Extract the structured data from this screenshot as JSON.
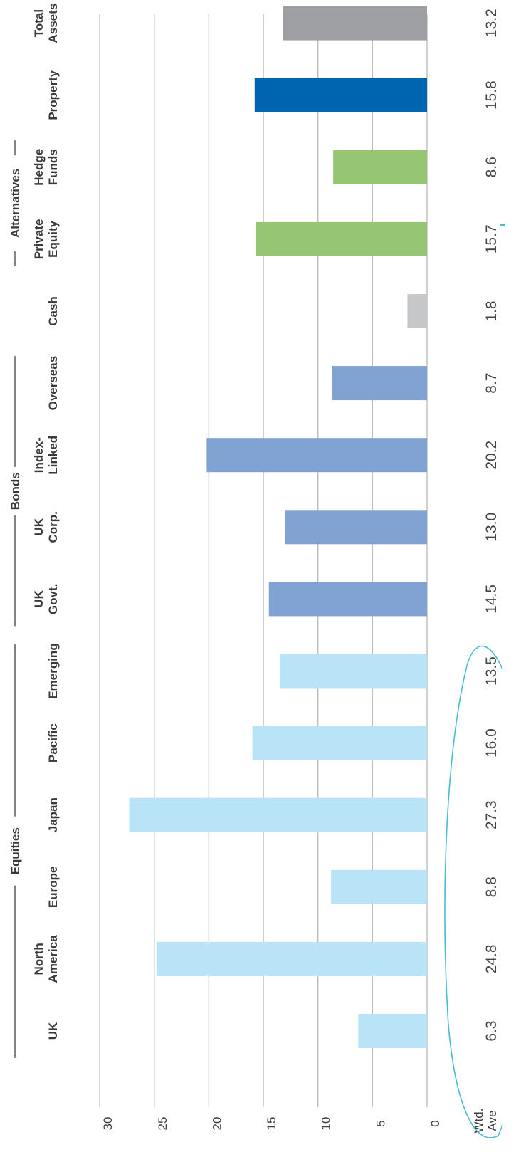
{
  "chart_data": {
    "type": "bar",
    "orientation": "horizontal",
    "categories": [
      "UK",
      "North America",
      "Europe",
      "Japan",
      "Pacific",
      "Emerging",
      "UK Govt.",
      "UK Corp.",
      "Index-Linked",
      "Overseas",
      "Cash",
      "Private Equity",
      "Hedge Funds",
      "Property",
      "Total Assets"
    ],
    "values": [
      6.3,
      24.8,
      8.8,
      27.3,
      16.0,
      13.5,
      14.5,
      13.0,
      20.2,
      8.7,
      1.8,
      15.7,
      8.6,
      15.8,
      13.2
    ],
    "value_labels": [
      "6.3",
      "24.8",
      "8.8",
      "27.3",
      "16.0",
      "13.5",
      "14.5",
      "13.0",
      "20.2",
      "8.7",
      "1.8",
      "15.7",
      "8.6",
      "15.8",
      "13.2"
    ],
    "bar_colors": [
      "#b9e3f7",
      "#b9e3f7",
      "#b9e3f7",
      "#b9e3f7",
      "#b9e3f7",
      "#b9e3f7",
      "#80a3d4",
      "#80a3d4",
      "#80a3d4",
      "#80a3d4",
      "#c6c7c9",
      "#96c573",
      "#96c573",
      "#0065b1",
      "#9d9fa2"
    ],
    "groups": [
      {
        "name": "Equities",
        "from": 0,
        "to": 5
      },
      {
        "name": "Bonds",
        "from": 6,
        "to": 9
      },
      {
        "name": "Alternatives",
        "from": 11,
        "to": 12
      }
    ],
    "value_axis": {
      "range": [
        0,
        30
      ],
      "ticks": [
        0,
        5,
        10,
        15,
        20,
        25,
        30
      ],
      "tick_labels": [
        "0",
        "5",
        "10",
        "15",
        "20",
        "25",
        "30"
      ]
    },
    "value_column_header": "Wtd. Ave",
    "rotation": "rotated 90 degrees clockwise (text reads bottom-to-top)",
    "grid": true,
    "highlight_color": "#4bbad5"
  }
}
